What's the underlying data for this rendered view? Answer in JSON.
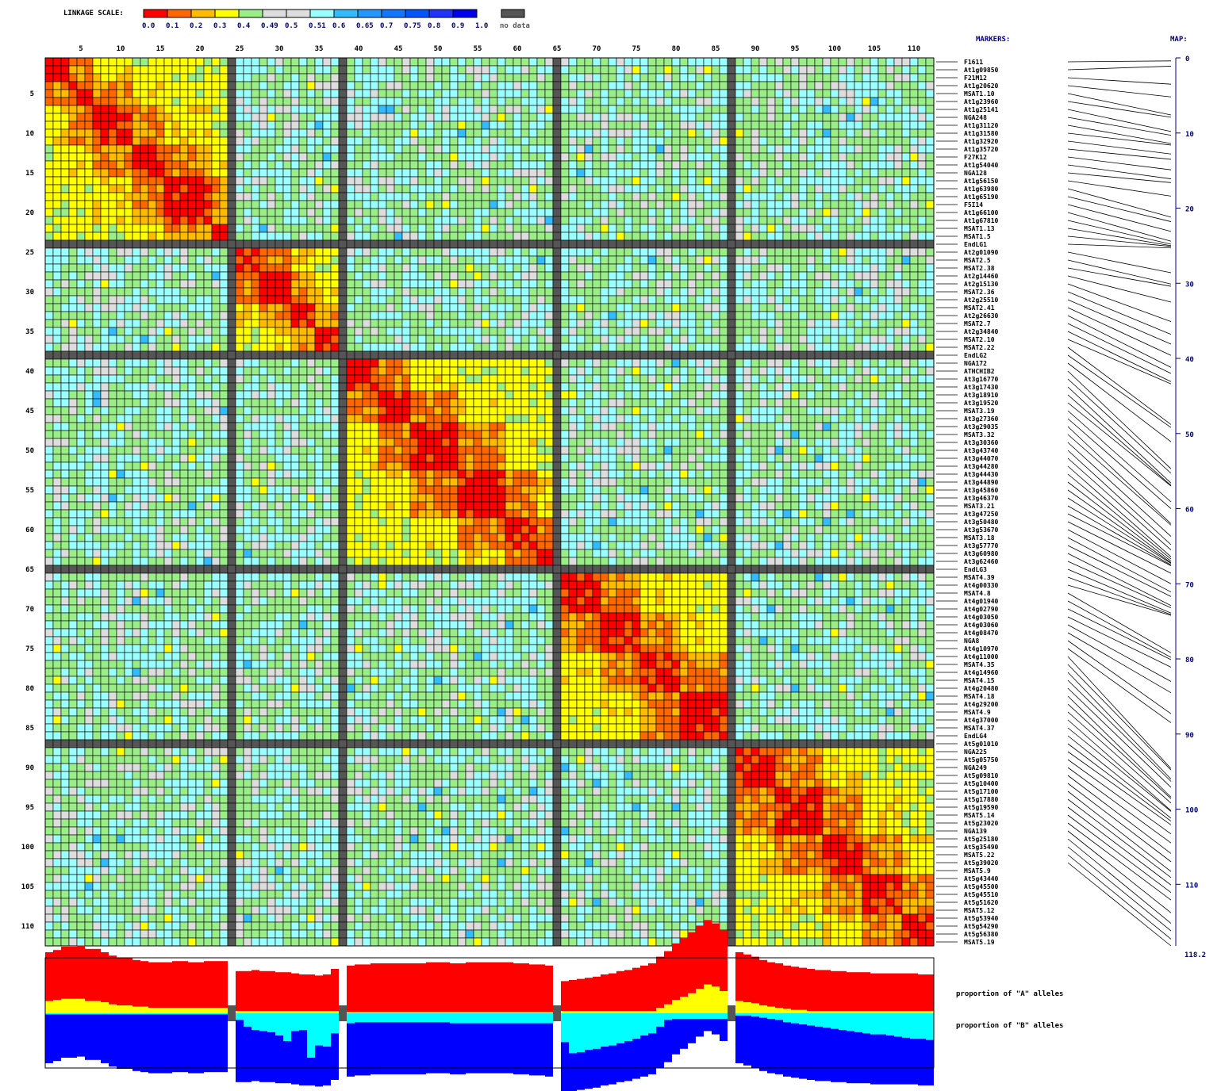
{
  "legend": {
    "title": "LINKAGE SCALE:",
    "colors": [
      "#ff0000",
      "#ff6600",
      "#ffbb00",
      "#ffff00",
      "#99ee88",
      "#dddddd",
      "#dddddd",
      "#99ffff",
      "#33bbff",
      "#2299ff",
      "#1177ff",
      "#0055ff",
      "#2233ff",
      "#0000ee"
    ],
    "labels": [
      "0.0",
      "0.1",
      "0.2",
      "0.3",
      "0.4",
      "0.49",
      "0.5",
      "0.51",
      "0.6",
      "0.65",
      "0.7",
      "0.75",
      "0.8",
      "0.9",
      "1.0"
    ],
    "nodata_color": "#555555",
    "nodata_label": "no data"
  },
  "headers": {
    "markers": "MARKERS:",
    "map": "MAP:"
  },
  "chart_data": {
    "type": "heatmap",
    "n": 112,
    "x_ticks": [
      5,
      10,
      15,
      20,
      25,
      30,
      35,
      40,
      45,
      50,
      55,
      60,
      65,
      70,
      75,
      80,
      85,
      90,
      95,
      100,
      105,
      110
    ],
    "y_ticks": [
      5,
      10,
      15,
      20,
      25,
      30,
      35,
      40,
      45,
      50,
      55,
      60,
      65,
      70,
      75,
      80,
      85,
      90,
      95,
      100,
      105,
      110
    ],
    "nodata_rows": [
      24,
      38,
      65,
      87
    ],
    "chromosomes": [
      {
        "start": 1,
        "end": 23,
        "blocks": [
          [
            1,
            3
          ],
          [
            4,
            6
          ],
          [
            7,
            11
          ],
          [
            12,
            15
          ],
          [
            16,
            21
          ],
          [
            22,
            23
          ]
        ]
      },
      {
        "start": 25,
        "end": 37,
        "blocks": [
          [
            25,
            27
          ],
          [
            28,
            31
          ],
          [
            32,
            34
          ],
          [
            35,
            37
          ]
        ]
      },
      {
        "start": 39,
        "end": 64,
        "blocks": [
          [
            39,
            42
          ],
          [
            43,
            46
          ],
          [
            47,
            52
          ],
          [
            53,
            58
          ],
          [
            59,
            62
          ],
          [
            63,
            64
          ]
        ]
      },
      {
        "start": 66,
        "end": 86,
        "blocks": [
          [
            66,
            70
          ],
          [
            71,
            75
          ],
          [
            76,
            80
          ],
          [
            81,
            86
          ]
        ]
      },
      {
        "start": 88,
        "end": 112,
        "blocks": [
          [
            88,
            92
          ],
          [
            93,
            98
          ],
          [
            99,
            103
          ],
          [
            104,
            108
          ],
          [
            109,
            112
          ]
        ]
      }
    ],
    "markers": [
      "F1611",
      "At1g09850",
      "F21M12",
      "At1g20620",
      "MSAT1.10",
      "At1g23960",
      "At1g25141",
      "NGA248",
      "At1g31120",
      "At1g31580",
      "At1g32920",
      "At1g35720",
      "F27K12",
      "At1g54040",
      "NGA128",
      "At1g56150",
      "At1g63980",
      "At1g65190",
      "F5I14",
      "At1g66100",
      "At1g67810",
      "MSAT1.13",
      "MSAT1.5",
      "EndLG1",
      "At2g01090",
      "MSAT2.5",
      "MSAT2.38",
      "At2g14460",
      "At2g15130",
      "MSAT2.36",
      "At2g25510",
      "MSAT2.41",
      "At2g26630",
      "MSAT2.7",
      "At2g34840",
      "MSAT2.10",
      "MSAT2.22",
      "EndLG2",
      "NGA172",
      "ATHCHIB2",
      "At3g16770",
      "At3g17430",
      "At3g18910",
      "At3g19520",
      "MSAT3.19",
      "At3g27360",
      "At3g29035",
      "MSAT3.32",
      "At3g30360",
      "At3g43740",
      "At3g44070",
      "At3g44280",
      "At3g44430",
      "At3g44890",
      "At3g45860",
      "At3g46370",
      "MSAT3.21",
      "At3g47250",
      "At3g50480",
      "At3g53670",
      "MSAT3.18",
      "At3g57770",
      "At3g60980",
      "At3g62460",
      "EndLG3",
      "MSAT4.39",
      "At4g00330",
      "MSAT4.8",
      "At4g01940",
      "At4g02790",
      "At4g03050",
      "At4g03060",
      "At4g08470",
      "NGA8",
      "At4g10970",
      "At4g11000",
      "MSAT4.35",
      "At4g14960",
      "MSAT4.15",
      "At4g20480",
      "MSAT4.18",
      "At4g29200",
      "MSAT4.9",
      "At4g37000",
      "MSAT4.37",
      "EndLG4",
      "At5g01010",
      "NGA225",
      "At5g05750",
      "NGA249",
      "At5g09810",
      "At5g10400",
      "At5g17100",
      "At5g17880",
      "At5g19590",
      "MSAT5.14",
      "At5g23020",
      "NGA139",
      "At5g25180",
      "At5g35490",
      "MSAT5.22",
      "At5g39020",
      "MSAT5.9",
      "At5g43440",
      "At5g45500",
      "At5g45510",
      "At5g51620",
      "MSAT5.12",
      "At5g53940",
      "At5g54290",
      "At5g56380",
      "MSAT5.19"
    ],
    "map": {
      "ticks": [
        0,
        10,
        20,
        30,
        40,
        50,
        60,
        70,
        80,
        90,
        100,
        110
      ],
      "max": 118.2,
      "max_label": "118.2",
      "positions": [
        0.4,
        1.1,
        3.5,
        5.2,
        7.6,
        7.9,
        9.8,
        10.3,
        11.4,
        11.6,
        12.8,
        13.5,
        14.9,
        16.1,
        16.6,
        18.4,
        21.2,
        21.8,
        23.1,
        24.4,
        24.8,
        25.0,
        25.1,
        25.3,
        28.6,
        30.1,
        30.4,
        32.5,
        35.1,
        36.8,
        38.1,
        39.6,
        41.2,
        42.0,
        43.1,
        43.4,
        48.8,
        49.2,
        51.1,
        54.7,
        55.3,
        56.6,
        56.9,
        57.0,
        59.1,
        60.0,
        62.0,
        62.2,
        63.7,
        64.8,
        65.5,
        66.4,
        66.7,
        67.0,
        67.2,
        67.3,
        67.5,
        67.6,
        68.6,
        70.0,
        71.1,
        71.7,
        72.9,
        73.2,
        73.9,
        74.1,
        74.2,
        79.2,
        79.8,
        80.1,
        81.1,
        83.0,
        84.5,
        87.3,
        88.5,
        94.6,
        94.8,
        96.0,
        96.3,
        97.1,
        98.4,
        98.6,
        99.2,
        100.2,
        100.3,
        101.2,
        101.6,
        102.1,
        103.3,
        104.5,
        105.9,
        107.0,
        108.3,
        109.1,
        110.1,
        111.1,
        112.1,
        113.8,
        115.2,
        116.2,
        117.3,
        118.2
      ]
    },
    "allele_labels": {
      "a": "proportion of \"A\" alleles",
      "b": "proportion of \"B\" alleles"
    },
    "allele_colors": {
      "a": "#ff0000",
      "h": "#ffff00",
      "b": "#0000ff",
      "hb": "#00ffff"
    },
    "allele_proportions": {
      "a": [
        0.44,
        0.45,
        0.47,
        0.47,
        0.48,
        0.47,
        0.47,
        0.45,
        0.44,
        0.43,
        0.43,
        0.42,
        0.41,
        0.41,
        0.41,
        0.41,
        0.42,
        0.42,
        0.41,
        0.41,
        0.42,
        0.42,
        0.42,
        0,
        0.36,
        0.36,
        0.37,
        0.36,
        0.36,
        0.35,
        0.35,
        0.34,
        0.33,
        0.33,
        0.32,
        0.33,
        0.38,
        0,
        0.42,
        0.43,
        0.43,
        0.44,
        0.44,
        0.44,
        0.44,
        0.44,
        0.44,
        0.44,
        0.45,
        0.45,
        0.45,
        0.44,
        0.44,
        0.45,
        0.45,
        0.45,
        0.45,
        0.45,
        0.45,
        0.44,
        0.44,
        0.43,
        0.43,
        0.42,
        0,
        0.27,
        0.28,
        0.29,
        0.3,
        0.31,
        0.33,
        0.34,
        0.36,
        0.37,
        0.39,
        0.41,
        0.43,
        0.46,
        0.48,
        0.51,
        0.53,
        0.55,
        0.57,
        0.58,
        0.57,
        0.55,
        0,
        0.44,
        0.43,
        0.42,
        0.41,
        0.4,
        0.4,
        0.39,
        0.39,
        0.38,
        0.38,
        0.37,
        0.37,
        0.36,
        0.36,
        0.35,
        0.35,
        0.35,
        0.34,
        0.34,
        0.34,
        0.34,
        0.34,
        0.34,
        0.33,
        0.33,
        0.33
      ],
      "h": [
        0.11,
        0.12,
        0.13,
        0.13,
        0.13,
        0.11,
        0.11,
        0.1,
        0.08,
        0.07,
        0.07,
        0.06,
        0.06,
        0.05,
        0.05,
        0.05,
        0.05,
        0.05,
        0.05,
        0.05,
        0.05,
        0.05,
        0.05,
        0,
        0.02,
        0.02,
        0.02,
        0.02,
        0.02,
        0.02,
        0.02,
        0.02,
        0.02,
        0.02,
        0.02,
        0.02,
        0.02,
        0,
        0.01,
        0.01,
        0.01,
        0.01,
        0.01,
        0.01,
        0.01,
        0.01,
        0.01,
        0.01,
        0.01,
        0.01,
        0.01,
        0.01,
        0.01,
        0.01,
        0.01,
        0.01,
        0.01,
        0.01,
        0.01,
        0.01,
        0.01,
        0.01,
        0.01,
        0.01,
        0,
        0.02,
        0.02,
        0.02,
        0.02,
        0.02,
        0.02,
        0.02,
        0.02,
        0.02,
        0.02,
        0.02,
        0.02,
        0.05,
        0.08,
        0.12,
        0.15,
        0.18,
        0.22,
        0.26,
        0.24,
        0.2,
        0,
        0.11,
        0.1,
        0.09,
        0.07,
        0.06,
        0.05,
        0.04,
        0.03,
        0.03,
        0.02,
        0.02,
        0.02,
        0.02,
        0.02,
        0.02,
        0.02,
        0.02,
        0.02,
        0.02,
        0.02,
        0.02,
        0.02,
        0.02,
        0.02,
        0.02,
        0.02
      ],
      "hb": [
        0.01,
        0.01,
        0.01,
        0.01,
        0.01,
        0.01,
        0.01,
        0.01,
        0.01,
        0.01,
        0.01,
        0.01,
        0.01,
        0.01,
        0.01,
        0.01,
        0.01,
        0.01,
        0.01,
        0.01,
        0.01,
        0.01,
        0.01,
        0,
        0.06,
        0.12,
        0.15,
        0.16,
        0.17,
        0.2,
        0.25,
        0.16,
        0.15,
        0.4,
        0.29,
        0.3,
        0.18,
        0,
        0.09,
        0.08,
        0.08,
        0.08,
        0.08,
        0.08,
        0.08,
        0.08,
        0.08,
        0.08,
        0.08,
        0.08,
        0.08,
        0.09,
        0.09,
        0.09,
        0.09,
        0.09,
        0.09,
        0.09,
        0.09,
        0.09,
        0.09,
        0.09,
        0.09,
        0.09,
        0,
        0.26,
        0.36,
        0.35,
        0.33,
        0.32,
        0.3,
        0.29,
        0.27,
        0.25,
        0.23,
        0.2,
        0.18,
        0.12,
        0.06,
        0.05,
        0.05,
        0.05,
        0.05,
        0.05,
        0.05,
        0.05,
        0,
        0.02,
        0.02,
        0.03,
        0.04,
        0.05,
        0.06,
        0.08,
        0.09,
        0.1,
        0.11,
        0.12,
        0.13,
        0.14,
        0.15,
        0.16,
        0.17,
        0.18,
        0.19,
        0.19,
        0.2,
        0.21,
        0.22,
        0.23,
        0.23,
        0.24,
        0.24
      ],
      "b": [
        0.44,
        0.42,
        0.39,
        0.39,
        0.38,
        0.41,
        0.41,
        0.44,
        0.47,
        0.49,
        0.49,
        0.51,
        0.52,
        0.53,
        0.53,
        0.53,
        0.52,
        0.52,
        0.53,
        0.53,
        0.52,
        0.52,
        0.52,
        0,
        0.56,
        0.5,
        0.46,
        0.46,
        0.45,
        0.43,
        0.38,
        0.48,
        0.5,
        0.25,
        0.37,
        0.35,
        0.42,
        0,
        0.48,
        0.48,
        0.48,
        0.47,
        0.47,
        0.47,
        0.47,
        0.47,
        0.47,
        0.47,
        0.46,
        0.46,
        0.46,
        0.46,
        0.46,
        0.45,
        0.45,
        0.45,
        0.45,
        0.45,
        0.45,
        0.46,
        0.46,
        0.47,
        0.47,
        0.48,
        0,
        0.45,
        0.34,
        0.34,
        0.35,
        0.35,
        0.35,
        0.35,
        0.35,
        0.36,
        0.36,
        0.37,
        0.37,
        0.37,
        0.38,
        0.32,
        0.27,
        0.22,
        0.16,
        0.11,
        0.14,
        0.2,
        0,
        0.43,
        0.45,
        0.46,
        0.48,
        0.49,
        0.49,
        0.49,
        0.49,
        0.49,
        0.49,
        0.49,
        0.48,
        0.48,
        0.47,
        0.47,
        0.46,
        0.45,
        0.45,
        0.45,
        0.44,
        0.43,
        0.42,
        0.41,
        0.42,
        0.41,
        0.41
      ]
    }
  }
}
